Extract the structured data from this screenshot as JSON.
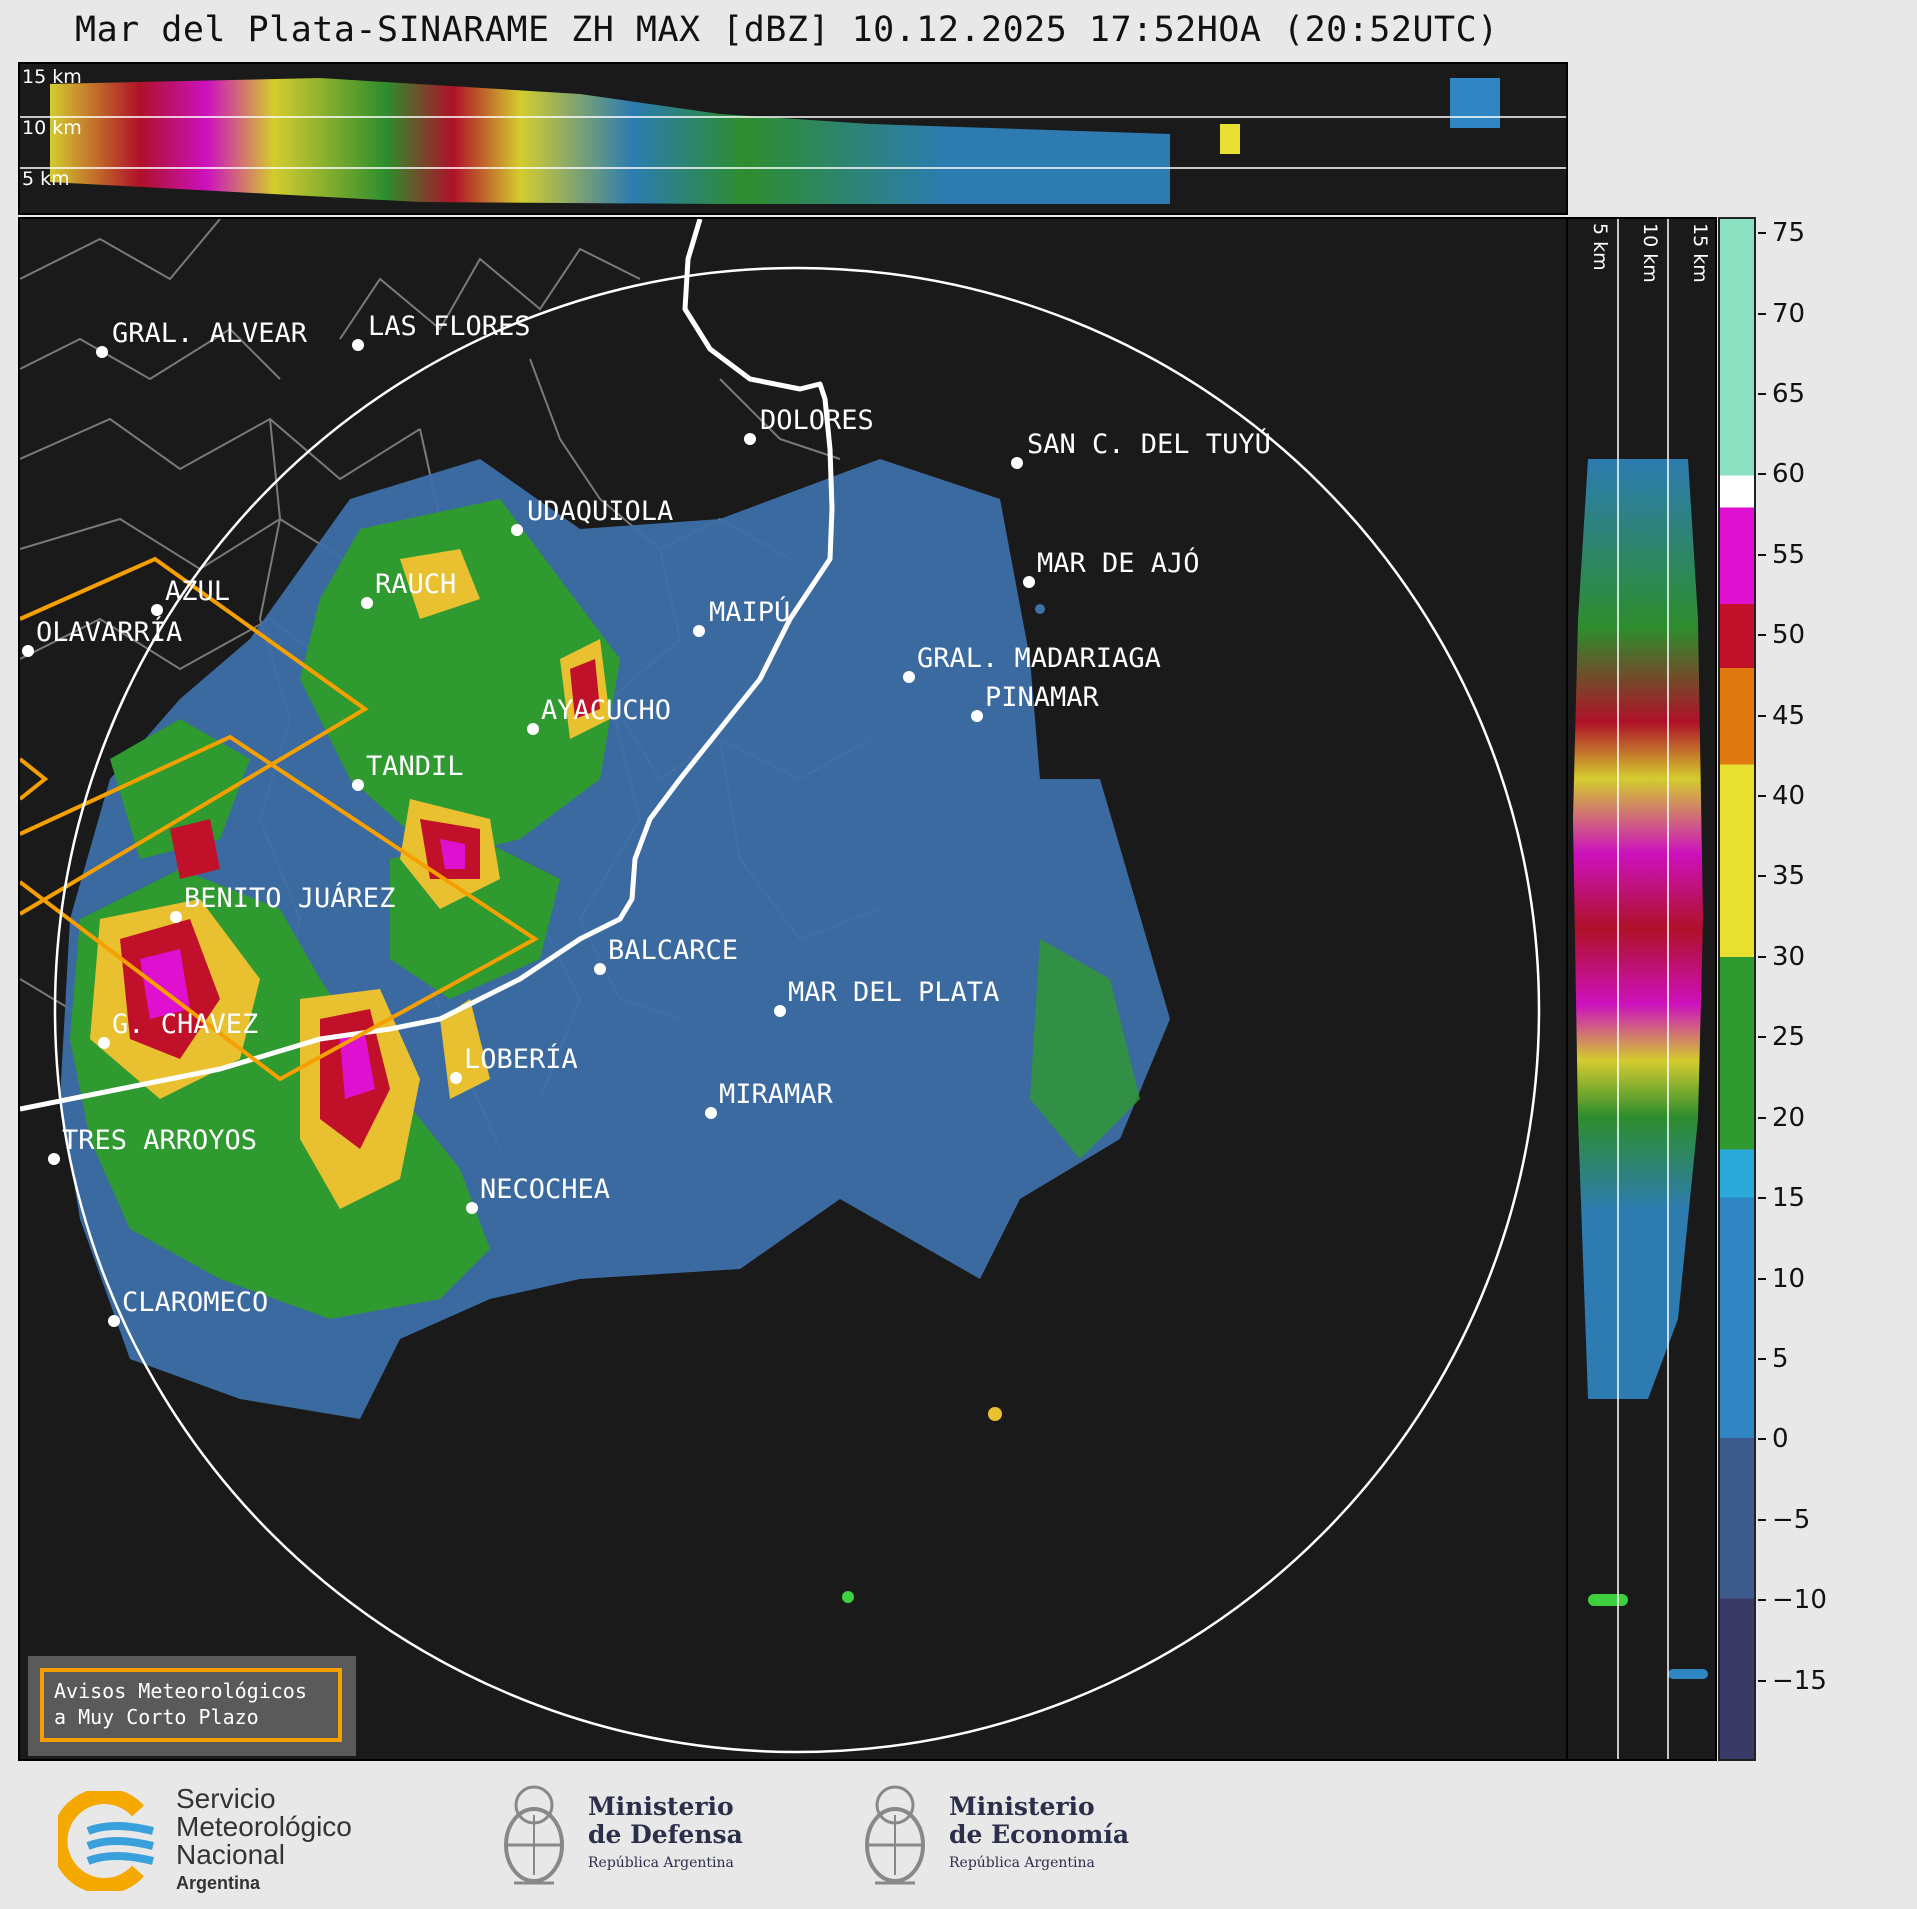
{
  "title": "Mar del Plata-SINARAME ZH MAX [dBZ] 10.12.2025 17:52HOA (20:52UTC)",
  "top_panel": {
    "altitude_labels": [
      "15 km",
      "10 km",
      "5 km"
    ]
  },
  "right_panel": {
    "altitude_labels": [
      "5 km",
      "10 km",
      "15 km"
    ]
  },
  "map": {
    "cities": [
      {
        "name": "GRAL. ALVEAR"
      },
      {
        "name": "LAS FLORES"
      },
      {
        "name": "DOLORES"
      },
      {
        "name": "SAN C. DEL TUYÚ"
      },
      {
        "name": "UDAQUIOLA"
      },
      {
        "name": "MAR DE AJÓ"
      },
      {
        "name": "RAUCH"
      },
      {
        "name": "AZUL"
      },
      {
        "name": "MAIPÚ"
      },
      {
        "name": "OLAVARRÍA"
      },
      {
        "name": "GRAL. MADARIAGA"
      },
      {
        "name": "PINAMAR"
      },
      {
        "name": "AYACUCHO"
      },
      {
        "name": "TANDIL"
      },
      {
        "name": "BENITO JUÁREZ"
      },
      {
        "name": "BALCARCE"
      },
      {
        "name": "MAR DEL PLATA"
      },
      {
        "name": "G. CHAVEZ"
      },
      {
        "name": "LOBERÍA"
      },
      {
        "name": "MIRAMAR"
      },
      {
        "name": "TRES ARROYOS"
      },
      {
        "name": "NECOCHEA"
      },
      {
        "name": "CLAROMECO"
      }
    ],
    "legend_line1": "Avisos Meteorológicos",
    "legend_line2": "a Muy Corto Plazo"
  },
  "colorbar": {
    "unit": "dBZ",
    "ticks": [
      "75",
      "70",
      "65",
      "60",
      "55",
      "50",
      "45",
      "40",
      "35",
      "30",
      "25",
      "20",
      "15",
      "10",
      "5",
      "0",
      "−5",
      "−10",
      "−15"
    ],
    "colors": {
      "range_m20_m15": "#3a3a66",
      "range_m10_0": "#3d5a8c",
      "range_0_15": "#2f86c2",
      "range_15_18": "#2aa8d8",
      "range_18_30": "#2f9a2f",
      "range_30_42": "#e8e030",
      "range_42_48": "#e07a10",
      "range_48_52": "#c0102a",
      "range_52_58": "#e010d0",
      "range_58_60": "#ffffff",
      "range_60_76": "#8ae0c0"
    }
  },
  "footer": {
    "smn_line1": "Servicio",
    "smn_line2": "Meteorológico",
    "smn_line3": "Nacional",
    "smn_line4": "Argentina",
    "defensa_line1": "Ministerio",
    "defensa_line2": "de Defensa",
    "defensa_line3": "República Argentina",
    "economia_line1": "Ministerio",
    "economia_line2": "de Economía",
    "economia_line3": "República Argentina"
  }
}
